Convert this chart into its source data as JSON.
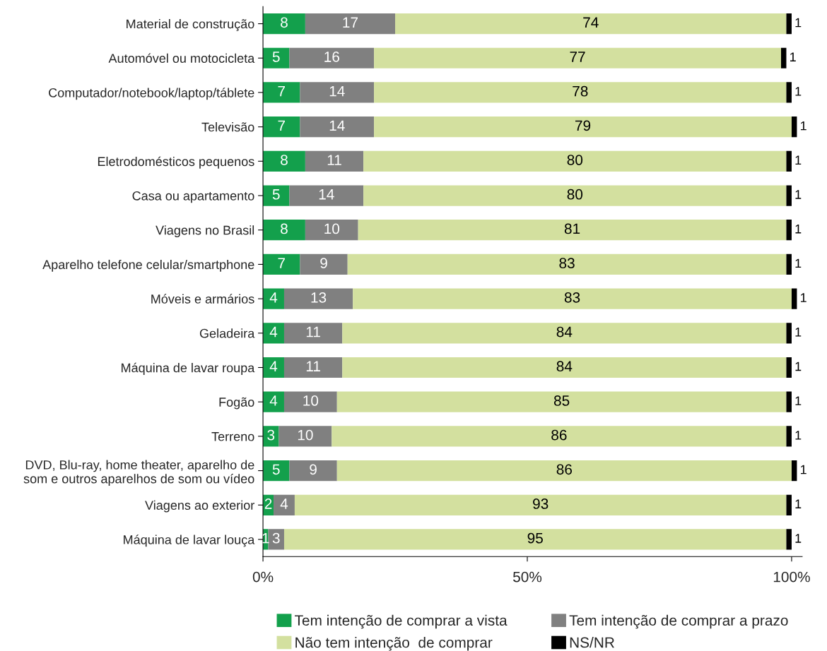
{
  "chart_data": {
    "type": "bar",
    "orientation": "horizontal",
    "stacked": true,
    "data_labels": true,
    "legend": "bottom",
    "grid": false,
    "categories": [
      "Material de construção",
      "Automóvel ou motocicleta",
      "Computador/notebook/laptop/táblete",
      "Televisão",
      "Eletrodomésticos pequenos",
      "Casa ou apartamento",
      "Viagens no Brasil",
      "Aparelho telefone celular/smartphone",
      "Móveis e armários",
      "Geladeira",
      "Máquina de lavar roupa",
      "Fogão",
      "Terreno",
      "DVD, Blu-ray, home theater, aparelho de\nsom e outros aparelhos de som ou vídeo",
      "Viagens ao exterior",
      "Máquina de lavar louça"
    ],
    "series": [
      {
        "name": "Tem intenção de comprar a vista",
        "color": "#13a04c",
        "values": [
          8,
          5,
          7,
          7,
          8,
          5,
          8,
          7,
          4,
          4,
          4,
          4,
          3,
          5,
          2,
          1
        ]
      },
      {
        "name": "Tem intenção de comprar a prazo",
        "color": "#808080",
        "values": [
          17,
          16,
          14,
          14,
          11,
          14,
          10,
          9,
          13,
          11,
          11,
          10,
          10,
          9,
          4,
          3
        ]
      },
      {
        "name": "Não tem intenção  de comprar",
        "color": "#d3e09f",
        "values": [
          74,
          77,
          78,
          79,
          80,
          80,
          81,
          83,
          83,
          84,
          84,
          85,
          86,
          86,
          93,
          95
        ]
      },
      {
        "name": "NS/NR",
        "color": "#000000",
        "values": [
          1,
          1,
          1,
          1,
          1,
          1,
          1,
          1,
          1,
          1,
          1,
          1,
          1,
          1,
          1,
          1
        ]
      }
    ],
    "xlim": [
      0,
      102
    ],
    "xticks": [
      {
        "value": 0,
        "label": "0%"
      },
      {
        "value": 50,
        "label": "50%"
      },
      {
        "value": 100,
        "label": "100%"
      }
    ]
  }
}
